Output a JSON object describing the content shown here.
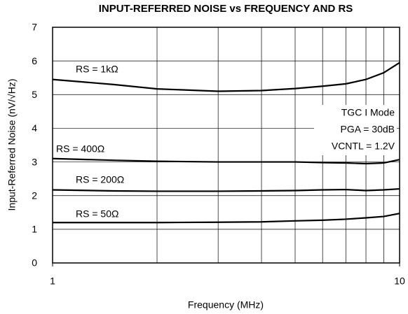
{
  "chart_data": {
    "type": "line",
    "title": "INPUT-REFERRED NOISE vs FREQUENCY AND RS",
    "xlabel": "Frequency (MHz)",
    "ylabel": "Input-Referred Noise (nV/√Hz)",
    "x": [
      1,
      1.5,
      2,
      3,
      4,
      5,
      6,
      7,
      8,
      9,
      10
    ],
    "xlim": [
      1,
      10
    ],
    "xticks": [
      1,
      10
    ],
    "xgrid": [
      2,
      3,
      4,
      5,
      6,
      7,
      8,
      9
    ],
    "xscale": "log",
    "ylim": [
      0,
      7
    ],
    "yticks": [
      0,
      1,
      2,
      3,
      4,
      5,
      6,
      7
    ],
    "grid": true,
    "series": [
      {
        "name": "RS = 1kΩ",
        "color": "#000000",
        "values": [
          5.45,
          5.3,
          5.17,
          5.1,
          5.12,
          5.18,
          5.25,
          5.32,
          5.45,
          5.65,
          5.95
        ]
      },
      {
        "name": "RS = 400Ω",
        "color": "#000000",
        "values": [
          3.1,
          3.05,
          3.02,
          3.0,
          3.0,
          3.0,
          2.98,
          2.97,
          2.95,
          2.97,
          3.07
        ]
      },
      {
        "name": "RS = 200Ω",
        "color": "#000000",
        "values": [
          2.17,
          2.14,
          2.13,
          2.13,
          2.14,
          2.15,
          2.17,
          2.18,
          2.15,
          2.17,
          2.2
        ]
      },
      {
        "name": "RS = 50Ω",
        "color": "#000000",
        "values": [
          1.2,
          1.2,
          1.2,
          1.21,
          1.22,
          1.25,
          1.27,
          1.3,
          1.34,
          1.38,
          1.47
        ]
      }
    ],
    "annotations": [
      "TGC I Mode",
      "PGA = 30dB",
      "VCNTL = 1.2V"
    ]
  }
}
